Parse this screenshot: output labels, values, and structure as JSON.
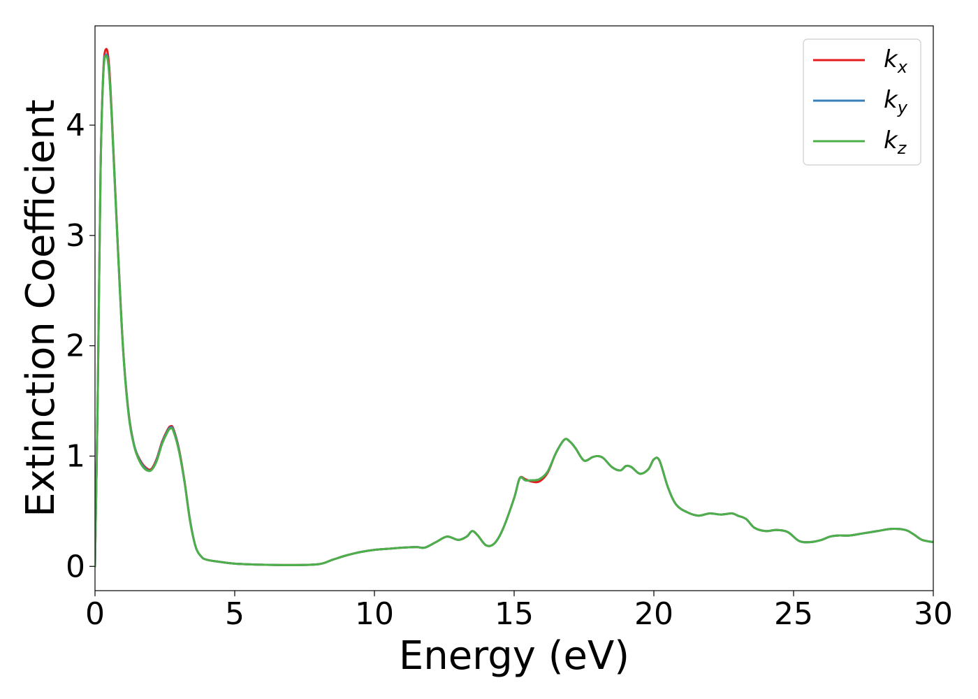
{
  "chart_data": {
    "type": "line",
    "xlabel": "Energy (eV)",
    "ylabel": "Extinction Coefficient",
    "xlim": [
      0,
      30
    ],
    "ylim": [
      -0.22,
      4.9
    ],
    "xticks": [
      "0",
      "5",
      "10",
      "15",
      "20",
      "25",
      "30"
    ],
    "yticks": [
      "0",
      "1",
      "2",
      "3",
      "4"
    ],
    "grid": false,
    "legend_position": "top-right",
    "x": [
      0,
      0.1,
      0.2,
      0.3,
      0.4,
      0.5,
      0.6,
      0.8,
      1.0,
      1.2,
      1.4,
      1.6,
      1.8,
      2.0,
      2.2,
      2.4,
      2.6,
      2.7,
      2.8,
      3.0,
      3.2,
      3.4,
      3.6,
      3.8,
      4.0,
      4.5,
      5,
      6,
      7,
      8,
      8.5,
      9,
      9.5,
      10,
      10.5,
      11,
      11.5,
      11.8,
      12.2,
      12.6,
      13.0,
      13.3,
      13.5,
      13.7,
      14.0,
      14.3,
      14.6,
      15.0,
      15.2,
      15.4,
      15.6,
      15.9,
      16.2,
      16.5,
      16.8,
      17.0,
      17.2,
      17.5,
      17.8,
      18.0,
      18.2,
      18.5,
      18.8,
      19.0,
      19.2,
      19.5,
      19.8,
      20.0,
      20.2,
      20.5,
      20.8,
      21.2,
      21.6,
      22.0,
      22.4,
      22.8,
      23.0,
      23.3,
      23.6,
      24.0,
      24.4,
      24.8,
      25.2,
      25.6,
      26.0,
      26.3,
      26.6,
      27.0,
      27.5,
      28.0,
      28.5,
      29.0,
      29.3,
      29.6,
      30.0
    ],
    "series": [
      {
        "name": "x",
        "color": "#e41a1c",
        "values": [
          0,
          1.6,
          3.6,
          4.5,
          4.69,
          4.55,
          4.1,
          3.0,
          2.0,
          1.4,
          1.1,
          0.97,
          0.9,
          0.88,
          0.97,
          1.13,
          1.24,
          1.27,
          1.25,
          1.07,
          0.78,
          0.42,
          0.18,
          0.09,
          0.06,
          0.04,
          0.025,
          0.015,
          0.012,
          0.02,
          0.06,
          0.1,
          0.13,
          0.15,
          0.16,
          0.17,
          0.175,
          0.17,
          0.22,
          0.27,
          0.24,
          0.27,
          0.32,
          0.28,
          0.19,
          0.21,
          0.34,
          0.62,
          0.8,
          0.79,
          0.77,
          0.77,
          0.85,
          1.03,
          1.15,
          1.13,
          1.07,
          0.96,
          0.99,
          1.0,
          0.98,
          0.9,
          0.87,
          0.91,
          0.9,
          0.84,
          0.88,
          0.97,
          0.96,
          0.72,
          0.56,
          0.49,
          0.46,
          0.48,
          0.47,
          0.48,
          0.46,
          0.43,
          0.35,
          0.32,
          0.33,
          0.31,
          0.23,
          0.22,
          0.24,
          0.27,
          0.28,
          0.28,
          0.3,
          0.32,
          0.34,
          0.33,
          0.29,
          0.24,
          0.22
        ],
        "label_main": "k",
        "label_sub": "x"
      },
      {
        "name": "y",
        "color": "#377eb8",
        "values": [
          0,
          1.6,
          3.6,
          4.48,
          4.64,
          4.5,
          4.07,
          2.98,
          1.99,
          1.39,
          1.1,
          0.96,
          0.89,
          0.87,
          0.96,
          1.12,
          1.23,
          1.26,
          1.24,
          1.06,
          0.77,
          0.42,
          0.18,
          0.09,
          0.06,
          0.04,
          0.025,
          0.015,
          0.012,
          0.02,
          0.06,
          0.1,
          0.13,
          0.15,
          0.16,
          0.17,
          0.175,
          0.17,
          0.22,
          0.27,
          0.24,
          0.27,
          0.32,
          0.28,
          0.19,
          0.21,
          0.34,
          0.62,
          0.8,
          0.78,
          0.78,
          0.79,
          0.86,
          1.03,
          1.15,
          1.13,
          1.07,
          0.96,
          0.99,
          1.0,
          0.98,
          0.9,
          0.87,
          0.91,
          0.9,
          0.84,
          0.88,
          0.97,
          0.96,
          0.72,
          0.56,
          0.49,
          0.46,
          0.48,
          0.47,
          0.48,
          0.46,
          0.43,
          0.35,
          0.32,
          0.33,
          0.31,
          0.23,
          0.22,
          0.24,
          0.27,
          0.28,
          0.28,
          0.3,
          0.32,
          0.34,
          0.33,
          0.29,
          0.24,
          0.22
        ],
        "label_main": "k",
        "label_sub": "y"
      },
      {
        "name": "z",
        "color": "#4daf4a",
        "values": [
          0,
          1.6,
          3.6,
          4.47,
          4.63,
          4.49,
          4.06,
          2.97,
          1.98,
          1.38,
          1.09,
          0.95,
          0.88,
          0.87,
          0.95,
          1.11,
          1.22,
          1.25,
          1.23,
          1.05,
          0.77,
          0.41,
          0.18,
          0.09,
          0.06,
          0.04,
          0.025,
          0.015,
          0.012,
          0.02,
          0.06,
          0.1,
          0.13,
          0.15,
          0.16,
          0.17,
          0.175,
          0.17,
          0.22,
          0.27,
          0.24,
          0.27,
          0.32,
          0.28,
          0.19,
          0.21,
          0.34,
          0.62,
          0.8,
          0.78,
          0.78,
          0.79,
          0.86,
          1.03,
          1.15,
          1.13,
          1.07,
          0.96,
          0.99,
          1.0,
          0.98,
          0.9,
          0.87,
          0.91,
          0.9,
          0.84,
          0.88,
          0.97,
          0.96,
          0.72,
          0.56,
          0.49,
          0.46,
          0.48,
          0.47,
          0.48,
          0.46,
          0.43,
          0.35,
          0.32,
          0.33,
          0.31,
          0.23,
          0.22,
          0.24,
          0.27,
          0.28,
          0.28,
          0.3,
          0.32,
          0.34,
          0.33,
          0.29,
          0.24,
          0.22
        ],
        "label_main": "k",
        "label_sub": "z"
      }
    ]
  }
}
